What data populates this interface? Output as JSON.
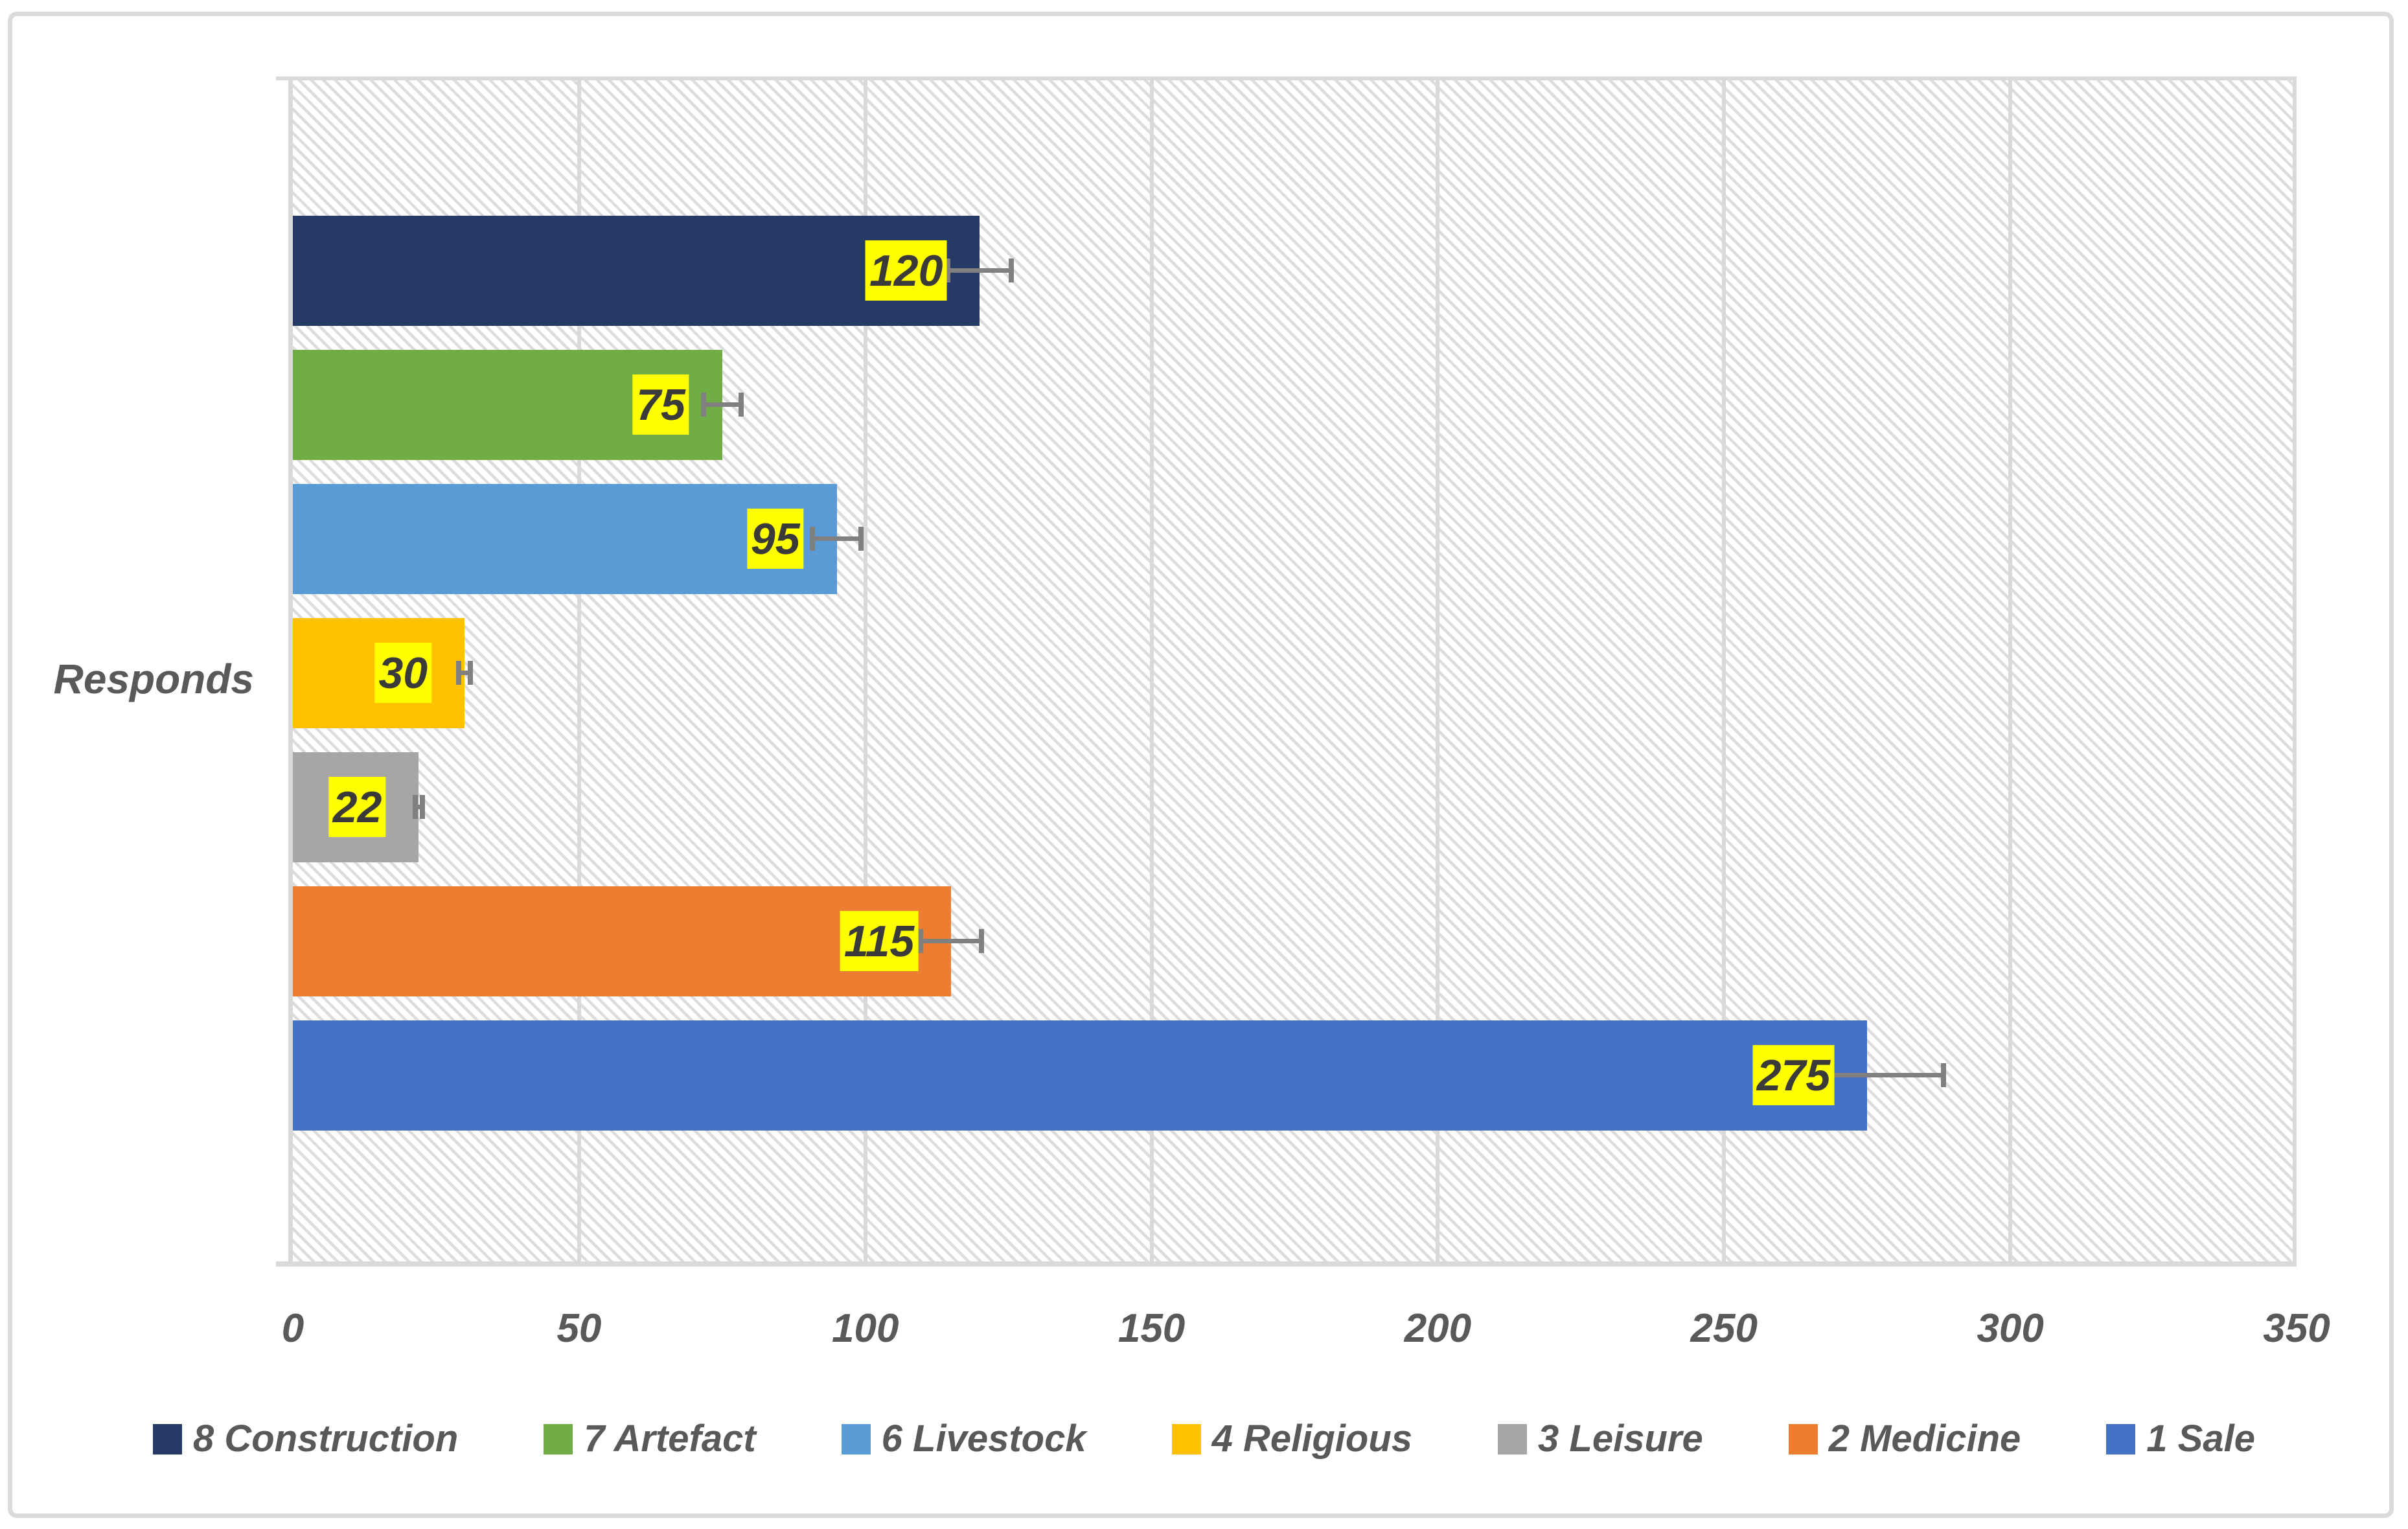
{
  "chart_data": {
    "type": "bar",
    "orientation": "horizontal",
    "category_label": "Responds",
    "series": [
      {
        "name": "8 Construction",
        "value": 120,
        "color": "#253A64"
      },
      {
        "name": "7 Artefact",
        "value": 75,
        "color": "#70AD47"
      },
      {
        "name": "6 Livestock",
        "value": 95,
        "color": "#5B9BD5"
      },
      {
        "name": "4 Religious",
        "value": 30,
        "color": "#FFC000"
      },
      {
        "name": "3 Leisure",
        "value": 22,
        "color": "#A6A6A6"
      },
      {
        "name": "2 Medicine",
        "value": 115,
        "color": "#ED7D31"
      },
      {
        "name": "1 Sale",
        "value": 275,
        "color": "#4472C4"
      }
    ],
    "x_axis": {
      "min": 0,
      "max": 350,
      "step": 50,
      "tick_labels": [
        "0",
        "50",
        "100",
        "150",
        "200",
        "250",
        "300",
        "350"
      ]
    },
    "error_bars": {
      "mode": "percentage",
      "value": 5,
      "direction": "both",
      "caps": true,
      "color": "#808080"
    },
    "data_labels": {
      "position": "inside-end",
      "background": "#FFFF00",
      "text_color": "#3A3A3A"
    },
    "legend_position": "bottom",
    "grid": true,
    "plot_background": "light-downward-diagonal-hatch",
    "colors": {
      "grid": "#D9D9D9",
      "frame": "#DBDBDB",
      "hatch": "#DCDCDC",
      "axis_text": "#595959",
      "label_highlight": "#FFFF00"
    }
  }
}
